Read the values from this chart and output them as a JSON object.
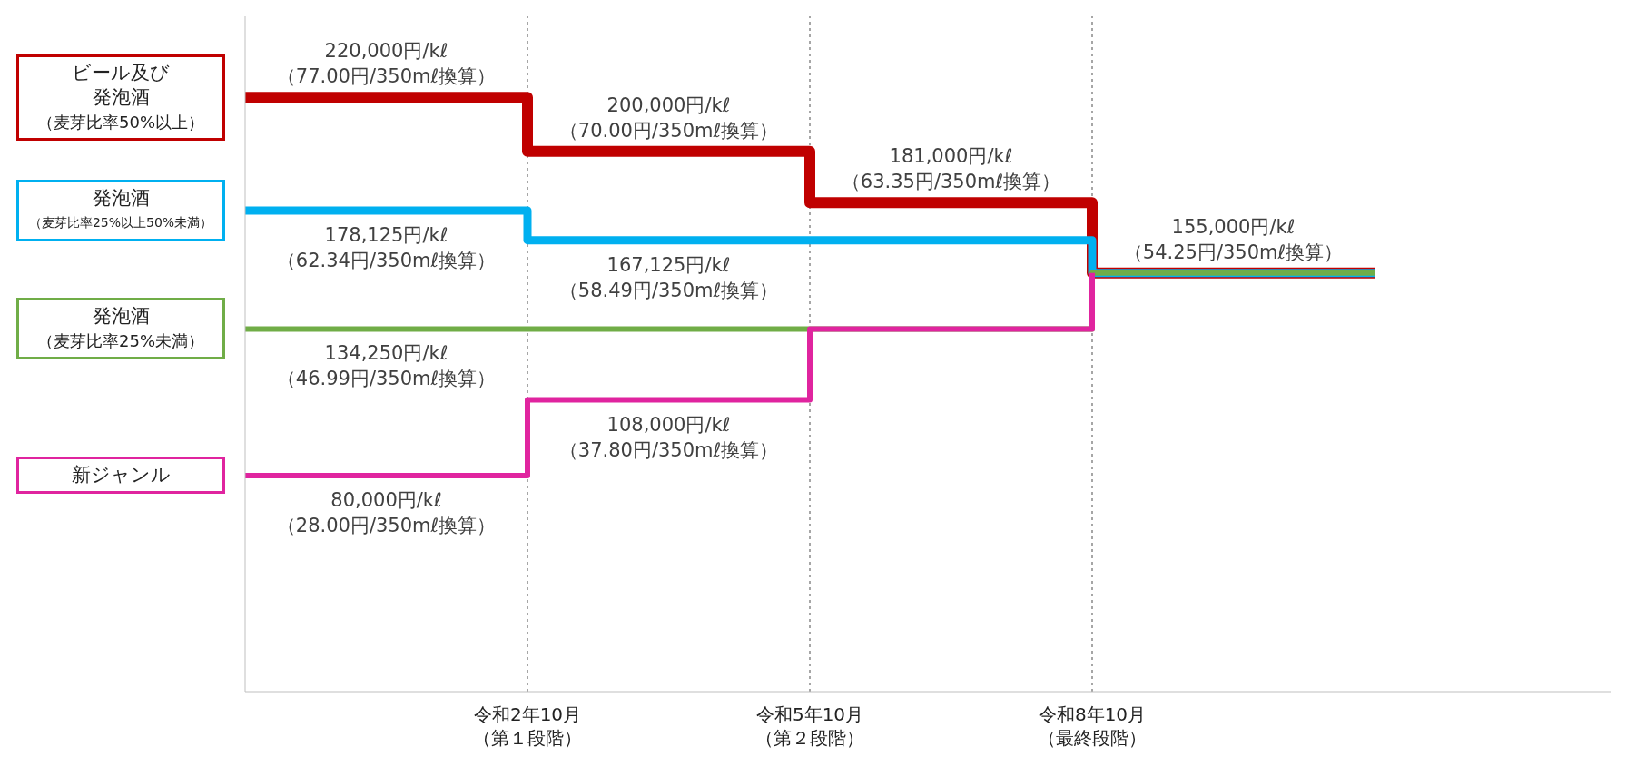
{
  "chart_data": {
    "type": "step",
    "categories": [
      null,
      "令和2年10月（第１段階）",
      "令和5年10月（第２段階）",
      "令和8年10月（最終段階）",
      null
    ],
    "series": [
      {
        "name": "ビール及び発泡酒（麦芽比率50%以上）",
        "color": "#c00000",
        "values": [
          220000,
          200000,
          181000,
          155000,
          155000
        ],
        "value_labels": [
          "220,000円/kℓ\n（77.00円/350mℓ換算）",
          "200,000円/kℓ\n（70.00円/350mℓ換算）",
          "181,000円/kℓ\n（63.35円/350mℓ換算）",
          "155,000円/kℓ\n（54.25円/350mℓ換算）",
          null
        ]
      },
      {
        "name": "発泡酒（麦芽比率25%以上50%未満）",
        "color": "#00b0f0",
        "values": [
          178125,
          167125,
          167125,
          155000,
          155000
        ],
        "value_labels": [
          "178,125円/kℓ\n（62.34円/350mℓ換算）",
          "167,125円/kℓ\n（58.49円/350mℓ換算）",
          null,
          null,
          null
        ]
      },
      {
        "name": "発泡酒（麦芽比率25%未満）",
        "color": "#70ad47",
        "values": [
          134250,
          134250,
          134250,
          155000,
          155000
        ],
        "value_labels": [
          "134,250円/kℓ\n（46.99円/350mℓ換算）",
          null,
          null,
          null,
          null
        ]
      },
      {
        "name": "新ジャンル",
        "color": "#e0249f",
        "values": [
          80000,
          108000,
          134250,
          155000,
          null
        ],
        "value_labels": [
          "80,000円/kℓ\n（28.00円/350mℓ換算）",
          "108,000円/kℓ\n（37.80円/350mℓ換算）",
          null,
          null,
          null
        ]
      }
    ],
    "ylim": [
      0,
      250000
    ],
    "tick_labels": "x",
    "legend": "left",
    "ref_lines": [
      {
        "axis": "x",
        "value": "令和2年10月（第１段階）",
        "color": "#a6a6a6",
        "line_style": "dotted"
      },
      {
        "axis": "x",
        "value": "令和5年10月（第２段階）",
        "color": "#a6a6a6",
        "line_style": "dotted"
      },
      {
        "axis": "x",
        "value": "令和8年10月（最終段階）",
        "color": "#a6a6a6",
        "line_style": "dotted"
      }
    ]
  }
}
